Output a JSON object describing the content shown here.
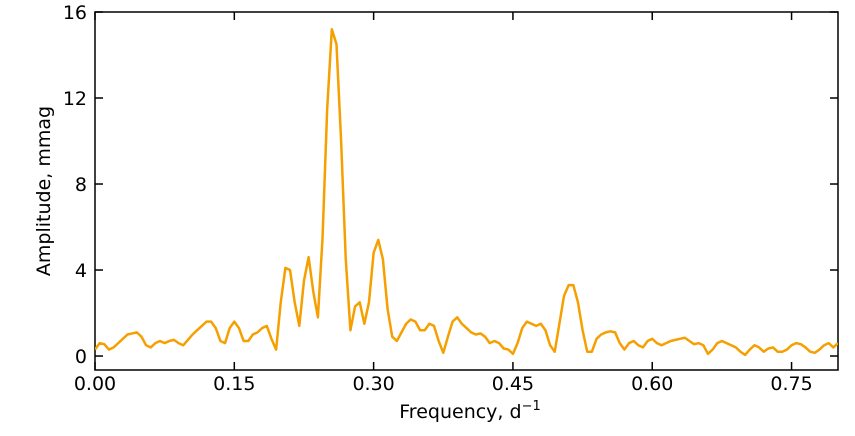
{
  "chart_data": {
    "type": "line",
    "x_label": "Frequency, d",
    "x_label_superscript": "−1",
    "y_label": "Amplitude, mmag",
    "xlim": [
      0,
      0.8
    ],
    "ylim": [
      -0.65,
      16
    ],
    "xticks": [
      {
        "value": 0,
        "label": "0.00"
      },
      0.15,
      {
        "value": 0.3,
        "label": "0.30"
      },
      0.45,
      {
        "value": 0.6,
        "label": "0.60"
      },
      0.75
    ],
    "yticks": [
      0,
      4,
      8,
      12,
      16
    ],
    "color": "#f5a000",
    "x": [
      0,
      0.005,
      0.01,
      0.015,
      0.02,
      0.025,
      0.03,
      0.035,
      0.04,
      0.045,
      0.05,
      0.055,
      0.06,
      0.065,
      0.07,
      0.075,
      0.08,
      0.085,
      0.09,
      0.095,
      0.1,
      0.105,
      0.11,
      0.115,
      0.12,
      0.125,
      0.13,
      0.135,
      0.14,
      0.145,
      0.15,
      0.155,
      0.16,
      0.165,
      0.17,
      0.175,
      0.18,
      0.185,
      0.19,
      0.195,
      0.2,
      0.205,
      0.21,
      0.215,
      0.22,
      0.225,
      0.23,
      0.235,
      0.24,
      0.245,
      0.25,
      0.255,
      0.26,
      0.265,
      0.27,
      0.275,
      0.28,
      0.285,
      0.29,
      0.295,
      0.3,
      0.305,
      0.31,
      0.315,
      0.32,
      0.325,
      0.33,
      0.335,
      0.34,
      0.345,
      0.35,
      0.355,
      0.36,
      0.365,
      0.37,
      0.375,
      0.38,
      0.385,
      0.39,
      0.395,
      0.4,
      0.405,
      0.41,
      0.415,
      0.42,
      0.425,
      0.43,
      0.435,
      0.44,
      0.445,
      0.45,
      0.455,
      0.46,
      0.465,
      0.47,
      0.475,
      0.48,
      0.485,
      0.49,
      0.495,
      0.5,
      0.505,
      0.51,
      0.515,
      0.52,
      0.525,
      0.53,
      0.535,
      0.54,
      0.545,
      0.55,
      0.555,
      0.56,
      0.565,
      0.57,
      0.575,
      0.58,
      0.585,
      0.59,
      0.595,
      0.6,
      0.605,
      0.61,
      0.615,
      0.62,
      0.625,
      0.63,
      0.635,
      0.64,
      0.645,
      0.65,
      0.655,
      0.66,
      0.665,
      0.67,
      0.675,
      0.68,
      0.685,
      0.69,
      0.695,
      0.7,
      0.705,
      0.71,
      0.715,
      0.72,
      0.725,
      0.73,
      0.735,
      0.74,
      0.745,
      0.75,
      0.755,
      0.76,
      0.765,
      0.77,
      0.775,
      0.78,
      0.785,
      0.79,
      0.795,
      0.8
    ],
    "values": [
      0.3,
      0.6,
      0.55,
      0.3,
      0.4,
      0.6,
      0.8,
      1.0,
      1.05,
      1.1,
      0.9,
      0.5,
      0.4,
      0.6,
      0.7,
      0.6,
      0.7,
      0.75,
      0.6,
      0.5,
      0.75,
      1.0,
      1.2,
      1.4,
      1.6,
      1.6,
      1.3,
      0.7,
      0.6,
      1.3,
      1.6,
      1.3,
      0.7,
      0.7,
      1.0,
      1.1,
      1.3,
      1.4,
      0.8,
      0.3,
      2.5,
      4.1,
      4.0,
      2.5,
      1.4,
      3.5,
      4.6,
      3.0,
      1.8,
      5.5,
      11.5,
      15.2,
      14.5,
      10,
      4.5,
      1.2,
      2.3,
      2.5,
      1.5,
      2.5,
      4.8,
      5.4,
      4.5,
      2.2,
      0.9,
      0.7,
      1.1,
      1.5,
      1.7,
      1.6,
      1.2,
      1.2,
      1.5,
      1.4,
      0.7,
      0.15,
      0.9,
      1.6,
      1.8,
      1.5,
      1.3,
      1.1,
      1.0,
      1.05,
      0.9,
      0.6,
      0.7,
      0.6,
      0.35,
      0.3,
      0.1,
      0.6,
      1.3,
      1.6,
      1.5,
      1.4,
      1.5,
      1.2,
      0.5,
      0.2,
      1.5,
      2.8,
      3.3,
      3.3,
      2.5,
      1.2,
      0.2,
      0.2,
      0.8,
      1.0,
      1.1,
      1.15,
      1.1,
      0.6,
      0.3,
      0.6,
      0.7,
      0.5,
      0.4,
      0.7,
      0.8,
      0.6,
      0.5,
      0.6,
      0.7,
      0.75,
      0.8,
      0.85,
      0.7,
      0.55,
      0.6,
      0.5,
      0.1,
      0.3,
      0.6,
      0.7,
      0.6,
      0.5,
      0.4,
      0.2,
      0.05,
      0.3,
      0.5,
      0.4,
      0.2,
      0.35,
      0.4,
      0.2,
      0.2,
      0.3,
      0.5,
      0.6,
      0.55,
      0.4,
      0.2,
      0.15,
      0.3,
      0.5,
      0.6,
      0.4,
      0.6
    ]
  }
}
